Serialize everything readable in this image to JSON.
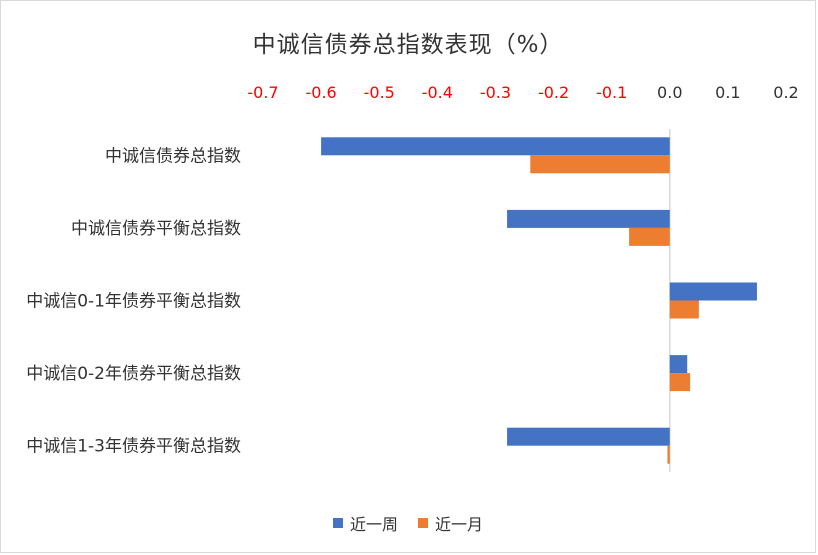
{
  "chart_data": {
    "type": "bar",
    "orientation": "horizontal",
    "title": "中诚信债券总指数表现（%）",
    "categories": [
      "中诚信债券总指数",
      "中诚信债券平衡总指数",
      "中诚信0-1年债券平衡总指数",
      "中诚信0-2年债券平衡总指数",
      "中诚信1-3年债券平衡总指数"
    ],
    "series": [
      {
        "name": "近一周",
        "color": "#4472c4",
        "values": [
          -0.6,
          -0.28,
          0.15,
          0.03,
          -0.28
        ]
      },
      {
        "name": "近一月",
        "color": "#ed7d31",
        "values": [
          -0.24,
          -0.07,
          0.05,
          0.035,
          -0.004
        ]
      }
    ],
    "xlim": [
      -0.7,
      0.2
    ],
    "x_ticks": [
      "-0.7",
      "-0.6",
      "-0.5",
      "-0.4",
      "-0.3",
      "-0.2",
      "-0.1",
      "0.0",
      "0.1",
      "0.2"
    ],
    "x_axis_position": "top",
    "negative_tick_color": "#ff0000",
    "legend_position": "bottom",
    "grid": false
  }
}
